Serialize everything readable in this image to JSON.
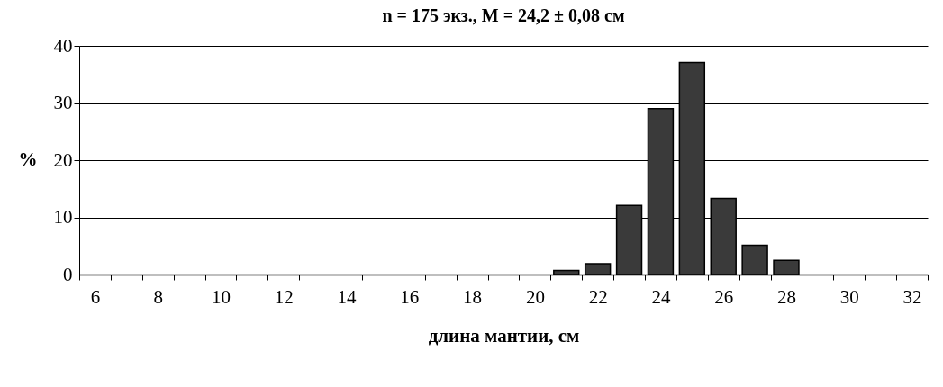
{
  "chart_data": {
    "type": "bar",
    "title": "n = 175 экз., M = 24,2 ± 0,08 см",
    "xlabel": "длина мантии, см",
    "ylabel": "%",
    "categories": [
      "6",
      null,
      "8",
      null,
      "10",
      null,
      "12",
      null,
      "14",
      null,
      "16",
      null,
      "18",
      null,
      "20",
      null,
      "22",
      null,
      "24",
      null,
      "26",
      null,
      "28",
      null,
      "30",
      null,
      "32"
    ],
    "values": [
      0,
      0,
      0,
      0,
      0,
      0,
      0,
      0,
      0,
      0,
      0,
      0,
      0,
      0,
      0,
      0.7,
      1.9,
      12.1,
      29,
      37.1,
      13.3,
      5.1,
      2.5,
      0,
      0,
      0,
      0
    ],
    "color": "#3a3a3a",
    "ylim": [
      0,
      40
    ],
    "yticks": [
      0,
      10,
      20,
      30,
      40
    ],
    "grid": "y"
  }
}
